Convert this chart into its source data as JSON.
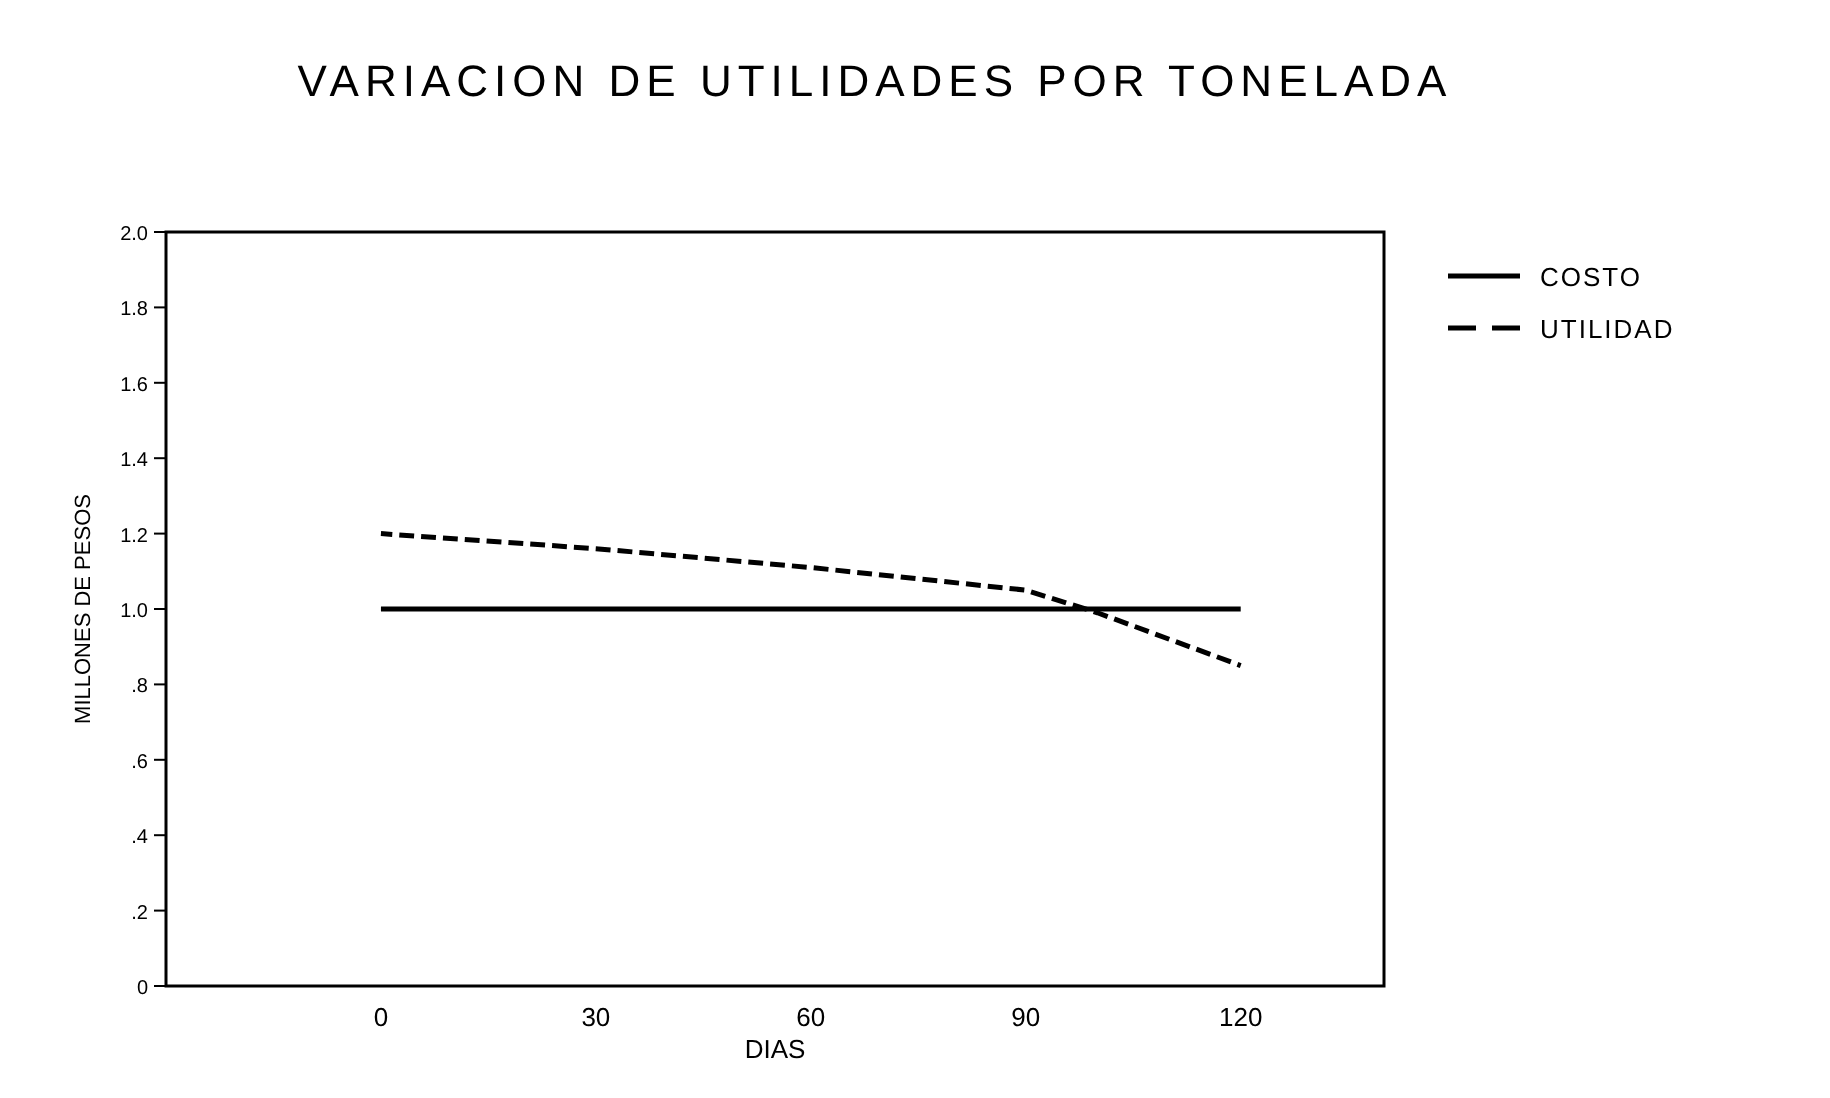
{
  "chart_data": {
    "type": "line",
    "title": "VARIACION DE UTILIDADES POR TONELADA",
    "xlabel": "DIAS",
    "ylabel": "MILLONES DE PESOS",
    "xlim": [
      -30,
      140
    ],
    "xticks": [
      0,
      30,
      60,
      90,
      120
    ],
    "ylim": [
      0,
      2
    ],
    "yticks": [
      0,
      {
        "value": 0.2,
        "label": ".2"
      },
      {
        "value": 0.4,
        "label": ".4"
      },
      {
        "value": 0.6,
        "label": ".6"
      },
      {
        "value": 0.8,
        "label": ".8"
      },
      {
        "value": 1,
        "label": "1.0"
      },
      {
        "value": 1.2,
        "label": "1.2"
      },
      {
        "value": 1.4,
        "label": "1.4"
      },
      {
        "value": 1.6,
        "label": "1.6"
      },
      {
        "value": 1.8,
        "label": "1.8"
      },
      {
        "value": 2,
        "label": "2.0"
      }
    ],
    "grid": false,
    "legend": "top right",
    "marker": "none",
    "series": [
      {
        "name": "COSTO",
        "color": "#000000",
        "x": [
          0,
          120
        ],
        "values": [
          1,
          1
        ],
        "line_style": "solid"
      },
      {
        "name": "UTILIDAD",
        "color": "#000000",
        "x": [
          0,
          30,
          60,
          90,
          100,
          120
        ],
        "values": [
          1.2,
          1.16,
          1.11,
          1.05,
          0.99,
          0.85
        ],
        "line_style": "dashed"
      }
    ]
  }
}
